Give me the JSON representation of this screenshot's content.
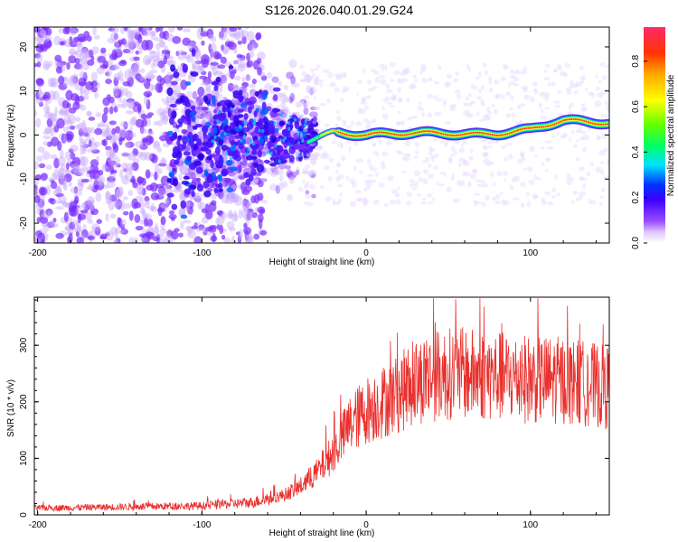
{
  "title": "S126.2026.040.01.29.G24",
  "chart_data": [
    {
      "type": "heatmap",
      "xlabel": "Height of straight line (km)",
      "ylabel": "Frequency (Hz)",
      "xlim": [
        -202,
        148
      ],
      "ylim": [
        -24.5,
        24.5
      ],
      "xticks": [
        -200,
        -100,
        0,
        100
      ],
      "yticks": [
        -20,
        -10,
        0,
        10,
        20
      ],
      "colorbar": {
        "label": "Normalized spectral amplitude",
        "range": [
          0.0,
          0.95
        ],
        "ticks": [
          0.0,
          0.2,
          0.4,
          0.6,
          0.8
        ]
      },
      "ridge": {
        "description_points": [
          [
            -35,
            -1
          ],
          [
            -20,
            1
          ],
          [
            0,
            0
          ],
          [
            20,
            0
          ],
          [
            50,
            0.5
          ],
          [
            80,
            0.5
          ],
          [
            100,
            1
          ],
          [
            120,
            3
          ],
          [
            148,
            3
          ]
        ],
        "onset_km": -35
      }
    },
    {
      "type": "line",
      "xlabel": "Height of straight line (km)",
      "ylabel": "SNR (10 * v/v)",
      "xlim": [
        -202,
        148
      ],
      "ylim": [
        0,
        385
      ],
      "xticks": [
        -200,
        -100,
        0,
        100
      ],
      "yticks": [
        0,
        100,
        200,
        300
      ],
      "series": [
        {
          "name": "SNR",
          "color": "#e8302c",
          "envelope_x": [
            -202,
            -150,
            -100,
            -70,
            -50,
            -40,
            -30,
            -20,
            -10,
            0,
            10,
            20,
            30,
            40,
            50,
            60,
            80,
            100,
            120,
            148
          ],
          "envelope_y": [
            12,
            14,
            16,
            22,
            35,
            50,
            75,
            110,
            160,
            185,
            200,
            215,
            235,
            245,
            250,
            250,
            245,
            240,
            238,
            225
          ]
        }
      ]
    }
  ]
}
